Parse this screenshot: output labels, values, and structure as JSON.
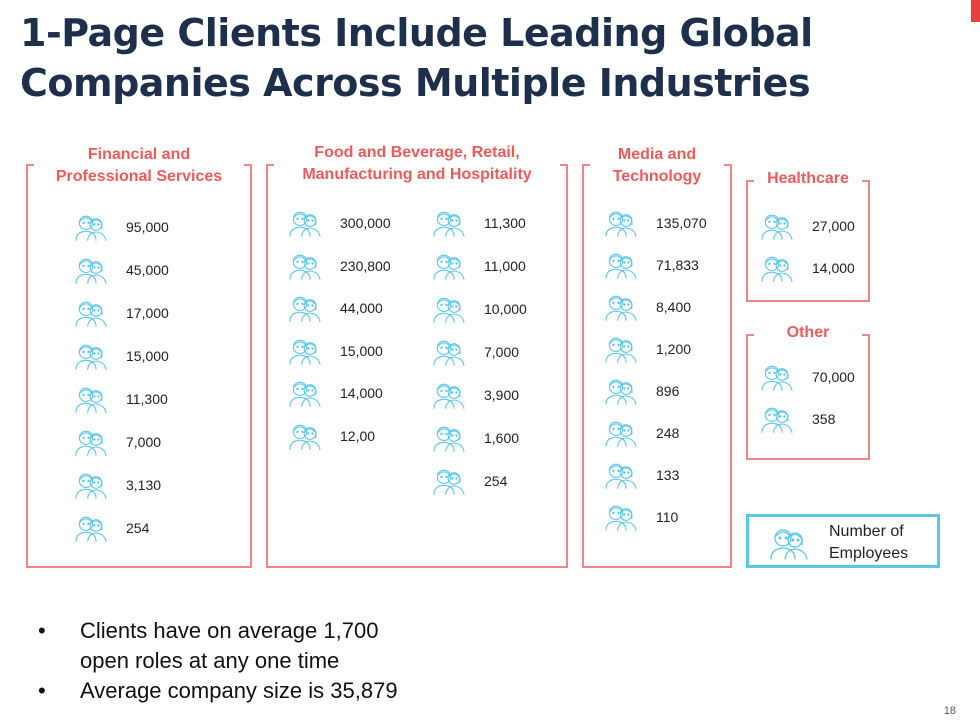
{
  "title": {
    "line1": "1-Page Clients Include Leading Global",
    "line2": "Companies Across Multiple Industries"
  },
  "panels": {
    "financial": {
      "heading": [
        "Financial and",
        "Professional Services"
      ],
      "values": [
        "95,000",
        "45,000",
        "17,000",
        "15,000",
        "11,300",
        "7,000",
        "3,130",
        "254"
      ]
    },
    "food": {
      "heading": [
        "Food and Beverage, Retail,",
        "Manufacturing and Hospitality"
      ],
      "col1": [
        "300,000",
        "230,800",
        "44,000",
        "15,000",
        "14,000",
        "12,00"
      ],
      "col2": [
        "11,300",
        "11,000",
        "10,000",
        "7,000",
        "3,900",
        "1,600",
        "254"
      ]
    },
    "media": {
      "heading": [
        "Media and",
        "Technology"
      ],
      "values": [
        "135,070",
        "71,833",
        "8,400",
        "1,200",
        "896",
        "248",
        "133",
        "110"
      ]
    },
    "healthcare": {
      "heading": [
        "Healthcare"
      ],
      "values": [
        "27,000",
        "14,000"
      ]
    },
    "other": {
      "heading": [
        "Other"
      ],
      "values": [
        "70,000",
        "358"
      ]
    }
  },
  "legend": {
    "line1": "Number of",
    "line2": "Employees",
    "icon": "people-icon"
  },
  "bullets": [
    {
      "line1": "Clients have on average 1,700",
      "line2": "open roles at any one time"
    },
    {
      "line1": "Average company size is 35,879",
      "line2": ""
    }
  ],
  "bullet_marker": "•",
  "page_number": "18",
  "colors": {
    "title": "#1d2f4a",
    "accent": "#ee5a5a",
    "border": "#f08585",
    "icon": "#5cc6ea"
  }
}
